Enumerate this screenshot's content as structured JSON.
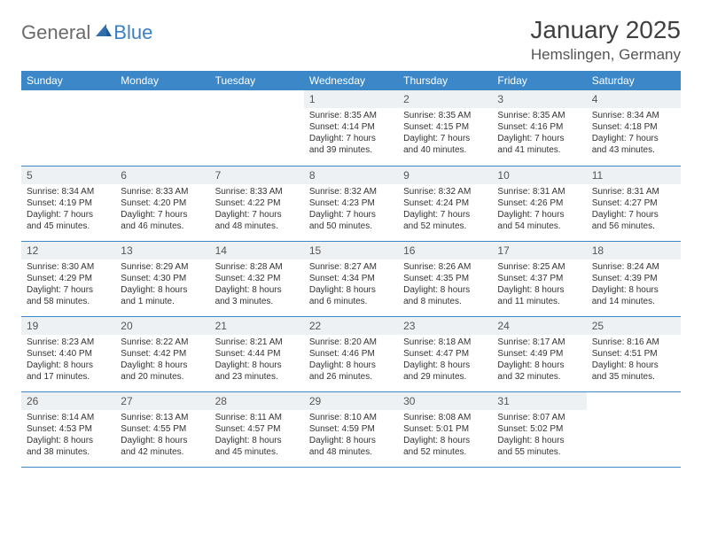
{
  "brand": {
    "part1": "General",
    "part2": "Blue"
  },
  "title": "January 2025",
  "location": "Hemslingen, Germany",
  "colors": {
    "header_bg": "#3c87c7",
    "header_text": "#ffffff",
    "daynum_bg": "#eef1f3",
    "text": "#333333",
    "rule": "#3c87c7",
    "brand_gray": "#6b6b6b",
    "brand_blue": "#3b7fc4",
    "page_bg": "#ffffff"
  },
  "typography": {
    "title_fontsize": 28,
    "location_fontsize": 17,
    "weekday_fontsize": 12,
    "daynum_fontsize": 12,
    "cell_fontsize": 10
  },
  "weekdays": [
    "Sunday",
    "Monday",
    "Tuesday",
    "Wednesday",
    "Thursday",
    "Friday",
    "Saturday"
  ],
  "weeks": [
    [
      {
        "day": "",
        "lines": []
      },
      {
        "day": "",
        "lines": []
      },
      {
        "day": "",
        "lines": []
      },
      {
        "day": "1",
        "lines": [
          "Sunrise: 8:35 AM",
          "Sunset: 4:14 PM",
          "Daylight: 7 hours and 39 minutes."
        ]
      },
      {
        "day": "2",
        "lines": [
          "Sunrise: 8:35 AM",
          "Sunset: 4:15 PM",
          "Daylight: 7 hours and 40 minutes."
        ]
      },
      {
        "day": "3",
        "lines": [
          "Sunrise: 8:35 AM",
          "Sunset: 4:16 PM",
          "Daylight: 7 hours and 41 minutes."
        ]
      },
      {
        "day": "4",
        "lines": [
          "Sunrise: 8:34 AM",
          "Sunset: 4:18 PM",
          "Daylight: 7 hours and 43 minutes."
        ]
      }
    ],
    [
      {
        "day": "5",
        "lines": [
          "Sunrise: 8:34 AM",
          "Sunset: 4:19 PM",
          "Daylight: 7 hours and 45 minutes."
        ]
      },
      {
        "day": "6",
        "lines": [
          "Sunrise: 8:33 AM",
          "Sunset: 4:20 PM",
          "Daylight: 7 hours and 46 minutes."
        ]
      },
      {
        "day": "7",
        "lines": [
          "Sunrise: 8:33 AM",
          "Sunset: 4:22 PM",
          "Daylight: 7 hours and 48 minutes."
        ]
      },
      {
        "day": "8",
        "lines": [
          "Sunrise: 8:32 AM",
          "Sunset: 4:23 PM",
          "Daylight: 7 hours and 50 minutes."
        ]
      },
      {
        "day": "9",
        "lines": [
          "Sunrise: 8:32 AM",
          "Sunset: 4:24 PM",
          "Daylight: 7 hours and 52 minutes."
        ]
      },
      {
        "day": "10",
        "lines": [
          "Sunrise: 8:31 AM",
          "Sunset: 4:26 PM",
          "Daylight: 7 hours and 54 minutes."
        ]
      },
      {
        "day": "11",
        "lines": [
          "Sunrise: 8:31 AM",
          "Sunset: 4:27 PM",
          "Daylight: 7 hours and 56 minutes."
        ]
      }
    ],
    [
      {
        "day": "12",
        "lines": [
          "Sunrise: 8:30 AM",
          "Sunset: 4:29 PM",
          "Daylight: 7 hours and 58 minutes."
        ]
      },
      {
        "day": "13",
        "lines": [
          "Sunrise: 8:29 AM",
          "Sunset: 4:30 PM",
          "Daylight: 8 hours and 1 minute."
        ]
      },
      {
        "day": "14",
        "lines": [
          "Sunrise: 8:28 AM",
          "Sunset: 4:32 PM",
          "Daylight: 8 hours and 3 minutes."
        ]
      },
      {
        "day": "15",
        "lines": [
          "Sunrise: 8:27 AM",
          "Sunset: 4:34 PM",
          "Daylight: 8 hours and 6 minutes."
        ]
      },
      {
        "day": "16",
        "lines": [
          "Sunrise: 8:26 AM",
          "Sunset: 4:35 PM",
          "Daylight: 8 hours and 8 minutes."
        ]
      },
      {
        "day": "17",
        "lines": [
          "Sunrise: 8:25 AM",
          "Sunset: 4:37 PM",
          "Daylight: 8 hours and 11 minutes."
        ]
      },
      {
        "day": "18",
        "lines": [
          "Sunrise: 8:24 AM",
          "Sunset: 4:39 PM",
          "Daylight: 8 hours and 14 minutes."
        ]
      }
    ],
    [
      {
        "day": "19",
        "lines": [
          "Sunrise: 8:23 AM",
          "Sunset: 4:40 PM",
          "Daylight: 8 hours and 17 minutes."
        ]
      },
      {
        "day": "20",
        "lines": [
          "Sunrise: 8:22 AM",
          "Sunset: 4:42 PM",
          "Daylight: 8 hours and 20 minutes."
        ]
      },
      {
        "day": "21",
        "lines": [
          "Sunrise: 8:21 AM",
          "Sunset: 4:44 PM",
          "Daylight: 8 hours and 23 minutes."
        ]
      },
      {
        "day": "22",
        "lines": [
          "Sunrise: 8:20 AM",
          "Sunset: 4:46 PM",
          "Daylight: 8 hours and 26 minutes."
        ]
      },
      {
        "day": "23",
        "lines": [
          "Sunrise: 8:18 AM",
          "Sunset: 4:47 PM",
          "Daylight: 8 hours and 29 minutes."
        ]
      },
      {
        "day": "24",
        "lines": [
          "Sunrise: 8:17 AM",
          "Sunset: 4:49 PM",
          "Daylight: 8 hours and 32 minutes."
        ]
      },
      {
        "day": "25",
        "lines": [
          "Sunrise: 8:16 AM",
          "Sunset: 4:51 PM",
          "Daylight: 8 hours and 35 minutes."
        ]
      }
    ],
    [
      {
        "day": "26",
        "lines": [
          "Sunrise: 8:14 AM",
          "Sunset: 4:53 PM",
          "Daylight: 8 hours and 38 minutes."
        ]
      },
      {
        "day": "27",
        "lines": [
          "Sunrise: 8:13 AM",
          "Sunset: 4:55 PM",
          "Daylight: 8 hours and 42 minutes."
        ]
      },
      {
        "day": "28",
        "lines": [
          "Sunrise: 8:11 AM",
          "Sunset: 4:57 PM",
          "Daylight: 8 hours and 45 minutes."
        ]
      },
      {
        "day": "29",
        "lines": [
          "Sunrise: 8:10 AM",
          "Sunset: 4:59 PM",
          "Daylight: 8 hours and 48 minutes."
        ]
      },
      {
        "day": "30",
        "lines": [
          "Sunrise: 8:08 AM",
          "Sunset: 5:01 PM",
          "Daylight: 8 hours and 52 minutes."
        ]
      },
      {
        "day": "31",
        "lines": [
          "Sunrise: 8:07 AM",
          "Sunset: 5:02 PM",
          "Daylight: 8 hours and 55 minutes."
        ]
      },
      {
        "day": "",
        "lines": []
      }
    ]
  ]
}
